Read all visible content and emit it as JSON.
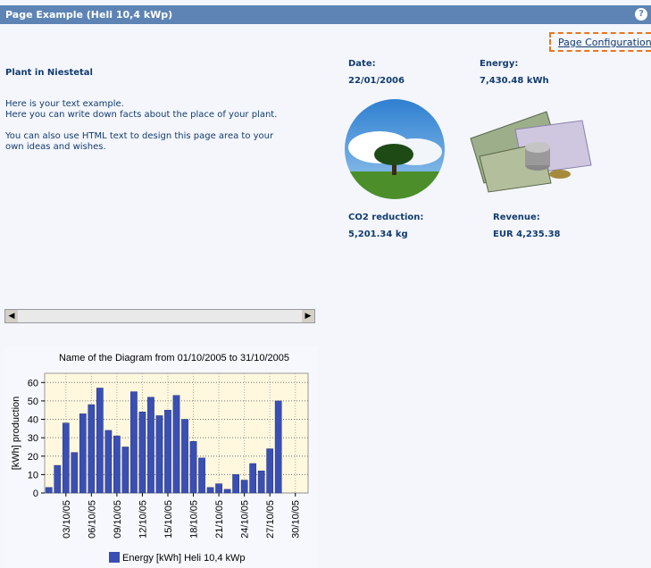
{
  "header": {
    "title": "Page Example (Heli 10,4 kWp)",
    "help": "?"
  },
  "link": "Page Configuration",
  "plant": {
    "heading": "Plant in Niestetal",
    "paragraphs": [
      [
        "Here is your text example.",
        "Here you can write down facts about the place of your plant."
      ],
      [
        "You can also use HTML text to design this page area to your",
        "own ideas and wishes."
      ]
    ]
  },
  "stats": {
    "date_label": "Date:",
    "date": "22/01/2006",
    "energy_label": "Energy:",
    "energy": "7,430.48 kWh",
    "co2_label": "CO2 reduction:",
    "co2": "5,201.34 kg",
    "revenue_label": "Revenue:",
    "revenue": "EUR 4,235.38"
  },
  "chart_data": {
    "type": "bar",
    "title": "Name of the Diagram from 01/10/2005 to 31/10/2005",
    "y_label": "[kWh] production",
    "categories": [
      null,
      null,
      "03/10/05",
      null,
      null,
      "06/10/05",
      null,
      null,
      "09/10/05",
      null,
      null,
      "12/10/05",
      null,
      null,
      "15/10/05",
      null,
      null,
      "18/10/05",
      null,
      null,
      "21/10/05",
      null,
      null,
      "24/10/05",
      null,
      null,
      "27/10/05",
      null,
      null,
      "30/10/05",
      null
    ],
    "series": [
      {
        "name": "Energy [kWh] Heli 10,4 kWp",
        "color": "#3a4fb3",
        "values": [
          3,
          15,
          38,
          22,
          43,
          48,
          57,
          34,
          31,
          25,
          55,
          44,
          52,
          42,
          45,
          53,
          40,
          28,
          19,
          3,
          5,
          2,
          10,
          7,
          16,
          12,
          24,
          50,
          0,
          0,
          0
        ]
      }
    ],
    "ylim": [
      0,
      65
    ],
    "yticks": [
      0,
      10,
      20,
      30,
      40,
      50,
      60
    ],
    "grid": true
  }
}
